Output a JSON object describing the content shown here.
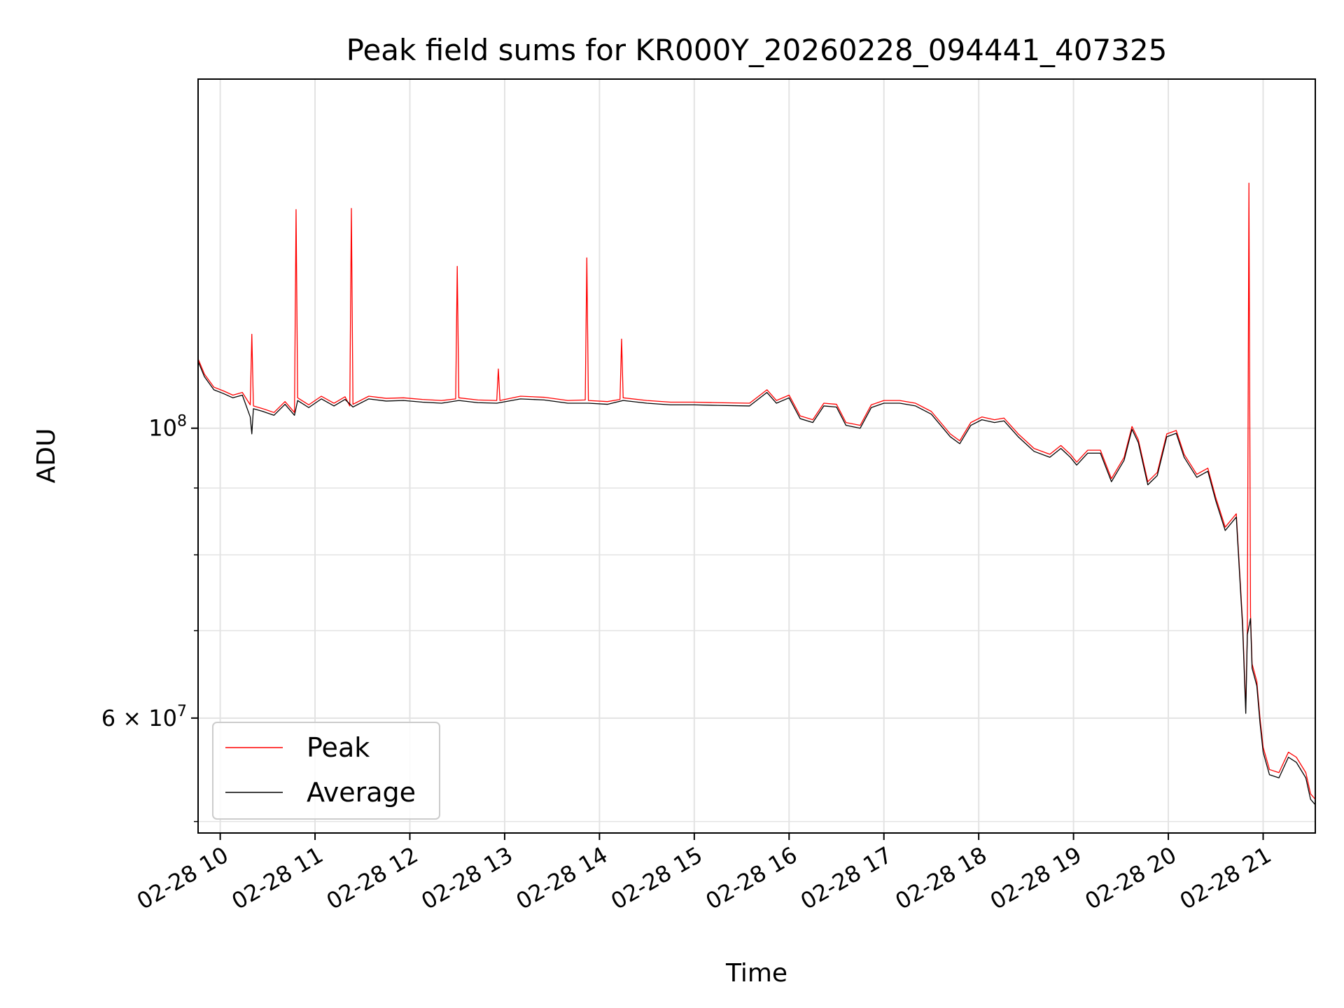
{
  "chart_data": {
    "type": "line",
    "title": "Peak field sums for KR000Y_20260228_094441_407325",
    "xlabel": "Time",
    "ylabel": "ADU",
    "yscale": "log",
    "xlim": [
      "2026-02-28 09:46",
      "2026-02-28 21:33"
    ],
    "ylim": [
      49000000,
      185000000
    ],
    "grid": true,
    "legend": {
      "position": "lower-left",
      "entries": [
        "Peak",
        "Average"
      ]
    },
    "x_ticks": [
      "02-28 10",
      "02-28 11",
      "02-28 12",
      "02-28 13",
      "02-28 14",
      "02-28 15",
      "02-28 16",
      "02-28 17",
      "02-28 18",
      "02-28 19",
      "02-28 20",
      "02-28 21"
    ],
    "y_tick_labels": [
      {
        "value": 100000000,
        "base": "10",
        "exp": "8"
      },
      {
        "value": 60000000,
        "base": "6 × 10",
        "exp": "7"
      }
    ],
    "y_minor_ticks": [
      50000000,
      70000000,
      80000000,
      90000000
    ],
    "series": [
      {
        "name": "Peak",
        "color": "#ff0000",
        "points": [
          [
            "2026-02-28 09:46",
            113000000
          ],
          [
            "2026-02-28 09:50",
            110000000
          ],
          [
            "2026-02-28 09:56",
            107500000
          ],
          [
            "2026-02-28 10:02",
            106800000
          ],
          [
            "2026-02-28 10:08",
            106000000
          ],
          [
            "2026-02-28 10:14",
            106500000
          ],
          [
            "2026-02-28 10:19",
            104200000
          ],
          [
            "2026-02-28 10:20",
            118000000
          ],
          [
            "2026-02-28 10:21",
            104000000
          ],
          [
            "2026-02-28 10:27",
            103500000
          ],
          [
            "2026-02-28 10:34",
            102800000
          ],
          [
            "2026-02-28 10:41",
            104800000
          ],
          [
            "2026-02-28 10:47",
            102800000
          ],
          [
            "2026-02-28 10:48",
            147000000
          ],
          [
            "2026-02-28 10:49",
            105500000
          ],
          [
            "2026-02-28 10:56",
            104200000
          ],
          [
            "2026-02-28 11:04",
            105800000
          ],
          [
            "2026-02-28 11:12",
            104500000
          ],
          [
            "2026-02-28 11:19",
            105700000
          ],
          [
            "2026-02-28 11:22",
            104000000
          ],
          [
            "2026-02-28 11:23",
            147300000
          ],
          [
            "2026-02-28 11:24",
            104300000
          ],
          [
            "2026-02-28 11:34",
            105800000
          ],
          [
            "2026-02-28 11:45",
            105400000
          ],
          [
            "2026-02-28 11:56",
            105500000
          ],
          [
            "2026-02-28 12:08",
            105200000
          ],
          [
            "2026-02-28 12:20",
            105000000
          ],
          [
            "2026-02-28 12:29",
            105300000
          ],
          [
            "2026-02-28 12:30",
            133000000
          ],
          [
            "2026-02-28 12:31",
            105500000
          ],
          [
            "2026-02-28 12:43",
            105100000
          ],
          [
            "2026-02-28 12:55",
            105000000
          ],
          [
            "2026-02-28 12:56",
            111000000
          ],
          [
            "2026-02-28 12:57",
            105000000
          ],
          [
            "2026-02-28 13:10",
            105800000
          ],
          [
            "2026-02-28 13:25",
            105600000
          ],
          [
            "2026-02-28 13:40",
            105000000
          ],
          [
            "2026-02-28 13:51",
            105100000
          ],
          [
            "2026-02-28 13:52",
            135000000
          ],
          [
            "2026-02-28 13:53",
            105000000
          ],
          [
            "2026-02-28 14:05",
            104800000
          ],
          [
            "2026-02-28 14:13",
            105200000
          ],
          [
            "2026-02-28 14:14",
            117000000
          ],
          [
            "2026-02-28 14:15",
            105500000
          ],
          [
            "2026-02-28 14:30",
            105000000
          ],
          [
            "2026-02-28 14:45",
            104700000
          ],
          [
            "2026-02-28 15:00",
            104700000
          ],
          [
            "2026-02-28 15:15",
            104600000
          ],
          [
            "2026-02-28 15:35",
            104500000
          ],
          [
            "2026-02-28 15:46",
            107000000
          ],
          [
            "2026-02-28 15:52",
            105000000
          ],
          [
            "2026-02-28 16:00",
            106000000
          ],
          [
            "2026-02-28 16:07",
            102200000
          ],
          [
            "2026-02-28 16:15",
            101500000
          ],
          [
            "2026-02-28 16:22",
            104500000
          ],
          [
            "2026-02-28 16:30",
            104300000
          ],
          [
            "2026-02-28 16:36",
            101000000
          ],
          [
            "2026-02-28 16:45",
            100500000
          ],
          [
            "2026-02-28 16:52",
            104200000
          ],
          [
            "2026-02-28 17:00",
            105000000
          ],
          [
            "2026-02-28 17:10",
            105000000
          ],
          [
            "2026-02-28 17:20",
            104500000
          ],
          [
            "2026-02-28 17:30",
            103000000
          ],
          [
            "2026-02-28 17:42",
            99000000
          ],
          [
            "2026-02-28 17:48",
            97800000
          ],
          [
            "2026-02-28 17:55",
            101000000
          ],
          [
            "2026-02-28 18:02",
            102000000
          ],
          [
            "2026-02-28 18:10",
            101500000
          ],
          [
            "2026-02-28 18:16",
            101800000
          ],
          [
            "2026-02-28 18:25",
            99000000
          ],
          [
            "2026-02-28 18:35",
            96500000
          ],
          [
            "2026-02-28 18:45",
            95500000
          ],
          [
            "2026-02-28 18:52",
            97000000
          ],
          [
            "2026-02-28 18:58",
            95500000
          ],
          [
            "2026-02-28 19:02",
            94200000
          ],
          [
            "2026-02-28 19:09",
            96200000
          ],
          [
            "2026-02-28 19:17",
            96200000
          ],
          [
            "2026-02-28 19:24",
            91500000
          ],
          [
            "2026-02-28 19:32",
            95000000
          ],
          [
            "2026-02-28 19:37",
            100300000
          ],
          [
            "2026-02-28 19:41",
            98000000
          ],
          [
            "2026-02-28 19:47",
            91000000
          ],
          [
            "2026-02-28 19:53",
            92500000
          ],
          [
            "2026-02-28 19:59",
            99000000
          ],
          [
            "2026-02-28 20:05",
            99600000
          ],
          [
            "2026-02-28 20:10",
            95500000
          ],
          [
            "2026-02-28 20:18",
            92200000
          ],
          [
            "2026-02-28 20:25",
            93200000
          ],
          [
            "2026-02-28 20:30",
            88500000
          ],
          [
            "2026-02-28 20:36",
            84000000
          ],
          [
            "2026-02-28 20:43",
            86000000
          ],
          [
            "2026-02-28 20:47",
            71000000
          ],
          [
            "2026-02-28 20:49",
            61000000
          ],
          [
            "2026-02-28 20:50",
            70000000
          ],
          [
            "2026-02-28 20:51",
            154000000
          ],
          [
            "2026-02-28 20:52",
            72000000
          ],
          [
            "2026-02-28 20:53",
            66000000
          ],
          [
            "2026-02-28 20:56",
            64000000
          ],
          [
            "2026-02-28 20:58",
            60000000
          ],
          [
            "2026-02-28 21:00",
            57000000
          ],
          [
            "2026-02-28 21:04",
            54800000
          ],
          [
            "2026-02-28 21:10",
            54500000
          ],
          [
            "2026-02-28 21:16",
            56500000
          ],
          [
            "2026-02-28 21:21",
            56000000
          ],
          [
            "2026-02-28 21:27",
            54500000
          ],
          [
            "2026-02-28 21:30",
            52500000
          ],
          [
            "2026-02-28 21:33",
            52000000
          ]
        ]
      },
      {
        "name": "Average",
        "color": "#000000",
        "points": [
          [
            "2026-02-28 09:46",
            112500000
          ],
          [
            "2026-02-28 09:50",
            109500000
          ],
          [
            "2026-02-28 09:56",
            107000000
          ],
          [
            "2026-02-28 10:02",
            106300000
          ],
          [
            "2026-02-28 10:08",
            105500000
          ],
          [
            "2026-02-28 10:14",
            106000000
          ],
          [
            "2026-02-28 10:19",
            102000000
          ],
          [
            "2026-02-28 10:20",
            99000000
          ],
          [
            "2026-02-28 10:21",
            103500000
          ],
          [
            "2026-02-28 10:27",
            103000000
          ],
          [
            "2026-02-28 10:34",
            102300000
          ],
          [
            "2026-02-28 10:41",
            104300000
          ],
          [
            "2026-02-28 10:47",
            102300000
          ],
          [
            "2026-02-28 10:49",
            105000000
          ],
          [
            "2026-02-28 10:56",
            103700000
          ],
          [
            "2026-02-28 11:04",
            105300000
          ],
          [
            "2026-02-28 11:12",
            104000000
          ],
          [
            "2026-02-28 11:19",
            105200000
          ],
          [
            "2026-02-28 11:24",
            103800000
          ],
          [
            "2026-02-28 11:34",
            105300000
          ],
          [
            "2026-02-28 11:45",
            104900000
          ],
          [
            "2026-02-28 11:56",
            105000000
          ],
          [
            "2026-02-28 12:08",
            104700000
          ],
          [
            "2026-02-28 12:20",
            104500000
          ],
          [
            "2026-02-28 12:31",
            105000000
          ],
          [
            "2026-02-28 12:43",
            104600000
          ],
          [
            "2026-02-28 12:55",
            104500000
          ],
          [
            "2026-02-28 13:10",
            105300000
          ],
          [
            "2026-02-28 13:25",
            105100000
          ],
          [
            "2026-02-28 13:40",
            104500000
          ],
          [
            "2026-02-28 13:53",
            104500000
          ],
          [
            "2026-02-28 14:05",
            104300000
          ],
          [
            "2026-02-28 14:15",
            105000000
          ],
          [
            "2026-02-28 14:30",
            104500000
          ],
          [
            "2026-02-28 14:45",
            104200000
          ],
          [
            "2026-02-28 15:00",
            104200000
          ],
          [
            "2026-02-28 15:15",
            104100000
          ],
          [
            "2026-02-28 15:35",
            104000000
          ],
          [
            "2026-02-28 15:46",
            106500000
          ],
          [
            "2026-02-28 15:52",
            104500000
          ],
          [
            "2026-02-28 16:00",
            105500000
          ],
          [
            "2026-02-28 16:07",
            101700000
          ],
          [
            "2026-02-28 16:15",
            101000000
          ],
          [
            "2026-02-28 16:22",
            104000000
          ],
          [
            "2026-02-28 16:30",
            103800000
          ],
          [
            "2026-02-28 16:36",
            100500000
          ],
          [
            "2026-02-28 16:45",
            100000000
          ],
          [
            "2026-02-28 16:52",
            103700000
          ],
          [
            "2026-02-28 17:00",
            104500000
          ],
          [
            "2026-02-28 17:10",
            104500000
          ],
          [
            "2026-02-28 17:20",
            104000000
          ],
          [
            "2026-02-28 17:30",
            102500000
          ],
          [
            "2026-02-28 17:42",
            98500000
          ],
          [
            "2026-02-28 17:48",
            97300000
          ],
          [
            "2026-02-28 17:55",
            100500000
          ],
          [
            "2026-02-28 18:02",
            101500000
          ],
          [
            "2026-02-28 18:10",
            101000000
          ],
          [
            "2026-02-28 18:16",
            101300000
          ],
          [
            "2026-02-28 18:25",
            98500000
          ],
          [
            "2026-02-28 18:35",
            96000000
          ],
          [
            "2026-02-28 18:45",
            95000000
          ],
          [
            "2026-02-28 18:52",
            96500000
          ],
          [
            "2026-02-28 18:58",
            95000000
          ],
          [
            "2026-02-28 19:02",
            93700000
          ],
          [
            "2026-02-28 19:09",
            95700000
          ],
          [
            "2026-02-28 19:17",
            95700000
          ],
          [
            "2026-02-28 19:24",
            91000000
          ],
          [
            "2026-02-28 19:32",
            94500000
          ],
          [
            "2026-02-28 19:37",
            99800000
          ],
          [
            "2026-02-28 19:41",
            97500000
          ],
          [
            "2026-02-28 19:47",
            90500000
          ],
          [
            "2026-02-28 19:53",
            92000000
          ],
          [
            "2026-02-28 19:59",
            98500000
          ],
          [
            "2026-02-28 20:05",
            99100000
          ],
          [
            "2026-02-28 20:10",
            95000000
          ],
          [
            "2026-02-28 20:18",
            91700000
          ],
          [
            "2026-02-28 20:25",
            92700000
          ],
          [
            "2026-02-28 20:30",
            88000000
          ],
          [
            "2026-02-28 20:36",
            83500000
          ],
          [
            "2026-02-28 20:43",
            85500000
          ],
          [
            "2026-02-28 20:47",
            70500000
          ],
          [
            "2026-02-28 20:49",
            60500000
          ],
          [
            "2026-02-28 20:50",
            69500000
          ],
          [
            "2026-02-28 20:52",
            71500000
          ],
          [
            "2026-02-28 20:53",
            65500000
          ],
          [
            "2026-02-28 20:56",
            63500000
          ],
          [
            "2026-02-28 20:58",
            59500000
          ],
          [
            "2026-02-28 21:00",
            56500000
          ],
          [
            "2026-02-28 21:04",
            54300000
          ],
          [
            "2026-02-28 21:10",
            54000000
          ],
          [
            "2026-02-28 21:16",
            56000000
          ],
          [
            "2026-02-28 21:21",
            55500000
          ],
          [
            "2026-02-28 21:27",
            54000000
          ],
          [
            "2026-02-28 21:30",
            52000000
          ],
          [
            "2026-02-28 21:33",
            51500000
          ]
        ]
      }
    ]
  }
}
